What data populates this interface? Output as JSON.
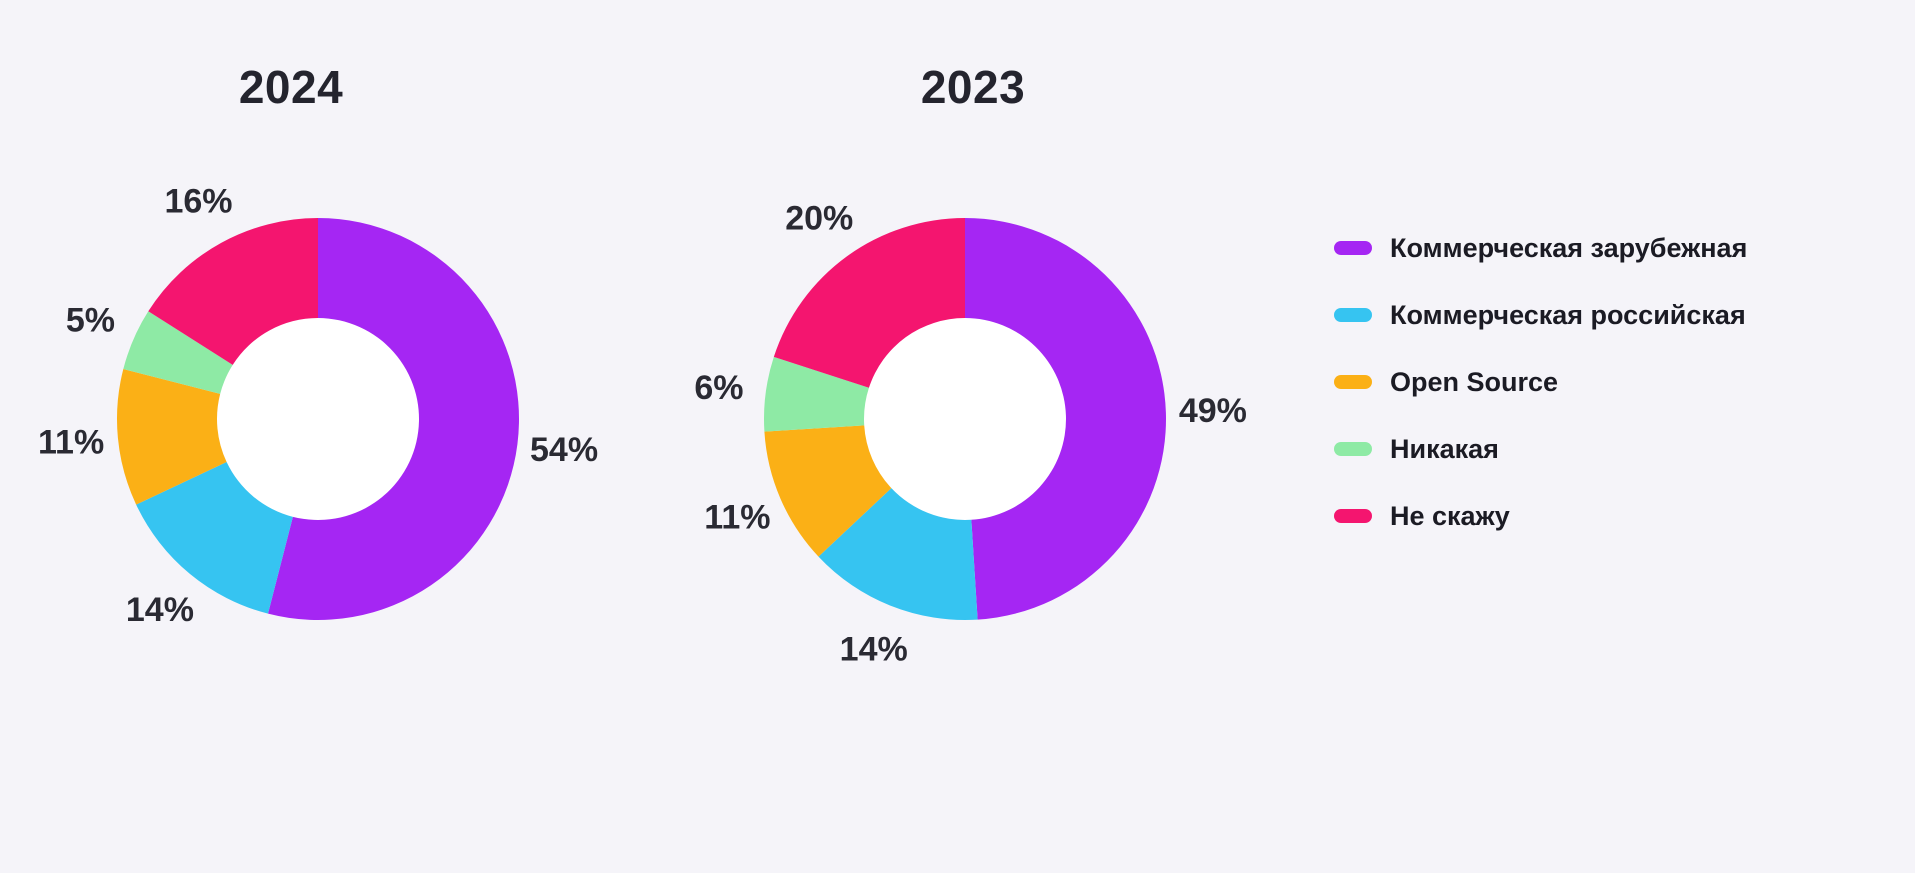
{
  "page": {
    "background": "#F5F4F9",
    "hole_color": "#FFFFFF",
    "text_color": "#2A2A33"
  },
  "chart_data": [
    {
      "type": "pie",
      "donut": true,
      "title": "2024",
      "start_angle_deg": 0,
      "direction": "clockwise",
      "categories": [
        "Коммерческая зарубежная",
        "Коммерческая российская",
        "Open Source",
        "Никакая",
        "Не скажу"
      ],
      "values": [
        54,
        14,
        11,
        5,
        16
      ],
      "labels": [
        "54%",
        "14%",
        "11%",
        "5%",
        "16%"
      ],
      "colors": [
        "#A526F3",
        "#36C4F1",
        "#FBB016",
        "#8EEAA5",
        "#F4156F"
      ]
    },
    {
      "type": "pie",
      "donut": true,
      "title": "2023",
      "start_angle_deg": 0,
      "direction": "clockwise",
      "categories": [
        "Коммерческая зарубежная",
        "Коммерческая российская",
        "Open Source",
        "Никакая",
        "Не скажу"
      ],
      "values": [
        49,
        14,
        11,
        6,
        20
      ],
      "labels": [
        "49%",
        "14%",
        "11%",
        "6%",
        "20%"
      ],
      "colors": [
        "#A526F3",
        "#36C4F1",
        "#FBB016",
        "#8EEAA5",
        "#F4156F"
      ]
    }
  ],
  "legend": {
    "items": [
      {
        "label": "Коммерческая зарубежная",
        "color": "#A526F3"
      },
      {
        "label": "Коммерческая российская",
        "color": "#36C4F1"
      },
      {
        "label": "Open Source",
        "color": "#FBB016"
      },
      {
        "label": "Никакая",
        "color": "#8EEAA5"
      },
      {
        "label": "Не скажу",
        "color": "#F4156F"
      }
    ]
  }
}
